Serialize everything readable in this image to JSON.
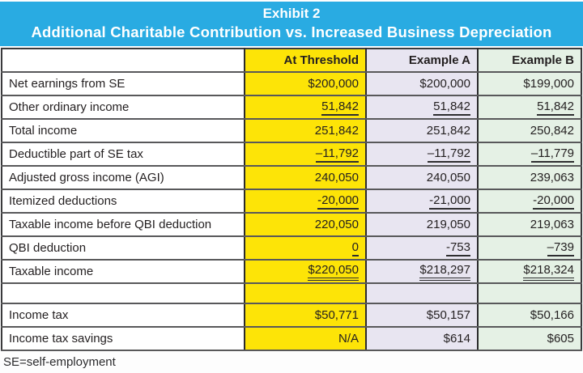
{
  "title": {
    "line1": "Exhibit 2",
    "line2": "Additional Charitable Contribution vs. Increased Business Depreciation"
  },
  "footnote": "SE=self-employment",
  "colors": {
    "title_bar_blue": "#29abe2",
    "at_threshold_yellow": "#fde407",
    "example_a_lavender": "#e8e5f1",
    "example_b_green": "#e5f1e5"
  },
  "table": {
    "columns": [
      {
        "label": ""
      },
      {
        "label": "At Threshold"
      },
      {
        "label": "Example A"
      },
      {
        "label": "Example B"
      }
    ],
    "rows": [
      {
        "label": "Net earnings from SE",
        "threshold": "$200,000",
        "a": "$200,000",
        "b": "$199,000",
        "underline": "none"
      },
      {
        "label": "Other ordinary income",
        "threshold": "51,842",
        "a": "51,842",
        "b": "51,842",
        "underline": "single"
      },
      {
        "label": "Total income",
        "threshold": "251,842",
        "a": "251,842",
        "b": "250,842",
        "underline": "none"
      },
      {
        "label": "Deductible part of SE tax",
        "threshold": "–11,792",
        "a": "–11,792",
        "b": "–11,779",
        "underline": "single"
      },
      {
        "label": "Adjusted gross income (AGI)",
        "threshold": "240,050",
        "a": "240,050",
        "b": "239,063",
        "underline": "none"
      },
      {
        "label": "Itemized deductions",
        "threshold": "-20,000",
        "a": "-21,000",
        "b": "-20,000",
        "underline": "single"
      },
      {
        "label": "Taxable income before QBI deduction",
        "threshold": "220,050",
        "a": "219,050",
        "b": "219,063",
        "underline": "none"
      },
      {
        "label": "QBI deduction",
        "threshold": "0",
        "a": "-753",
        "b": "–739",
        "underline": "single"
      },
      {
        "label": "Taxable income",
        "threshold": "$220,050",
        "a": "$218,297",
        "b": "$218,324",
        "underline": "double"
      },
      {
        "label": "",
        "threshold": "",
        "a": "",
        "b": "",
        "underline": "none"
      },
      {
        "label": "Income tax",
        "threshold": "$50,771",
        "a": "$50,157",
        "b": "$50,166",
        "underline": "none"
      },
      {
        "label": "Income tax savings",
        "threshold": "N/A",
        "a": "$614",
        "b": "$605",
        "underline": "none"
      }
    ]
  }
}
